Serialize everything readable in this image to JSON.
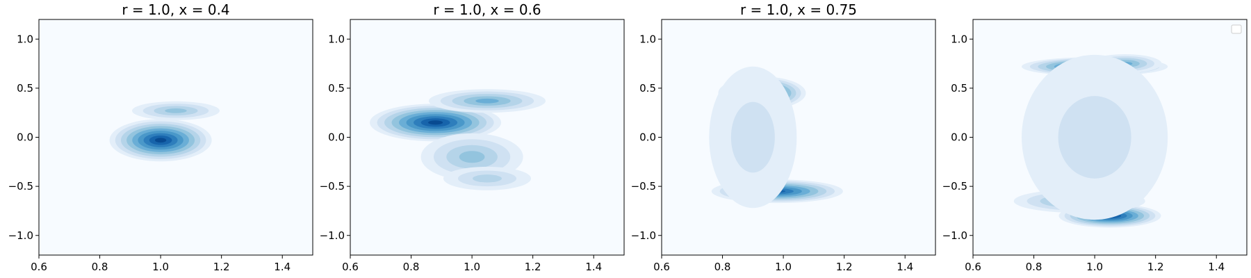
{
  "chart_data": [
    {
      "type": "contour",
      "title": "r = 1.0, x = 0.4",
      "xlim": [
        0.6,
        1.5
      ],
      "ylim": [
        -1.2,
        1.2
      ],
      "xticks": [
        "0.6",
        "0.8",
        "1.0",
        "1.2",
        "1.4"
      ],
      "yticks": [
        "1.0",
        "0.5",
        "0.0",
        "−0.5",
        "−1.0"
      ],
      "colormap": "Blues",
      "density_peaks": [
        {
          "x": 1.0,
          "y": -0.03,
          "spread_x": 0.07,
          "spread_y": 0.09,
          "weight": 1.0
        },
        {
          "x": 1.05,
          "y": 0.27,
          "spread_x": 0.06,
          "spread_y": 0.04,
          "weight": 0.4
        }
      ]
    },
    {
      "type": "contour",
      "title": "r = 1.0, x = 0.6",
      "xlim": [
        0.6,
        1.5
      ],
      "ylim": [
        -1.2,
        1.2
      ],
      "xticks": [
        "0.6",
        "0.8",
        "1.0",
        "1.2",
        "1.4"
      ],
      "yticks": [
        "1.0",
        "0.5",
        "0.0",
        "−0.5",
        "−1.0"
      ],
      "colormap": "Blues",
      "density_peaks": [
        {
          "x": 0.88,
          "y": 0.15,
          "spread_x": 0.09,
          "spread_y": 0.08,
          "weight": 1.0
        },
        {
          "x": 1.05,
          "y": 0.37,
          "spread_x": 0.08,
          "spread_y": 0.05,
          "weight": 0.5
        },
        {
          "x": 1.0,
          "y": -0.2,
          "spread_x": 0.07,
          "spread_y": 0.1,
          "weight": 0.45
        },
        {
          "x": 1.05,
          "y": -0.42,
          "spread_x": 0.06,
          "spread_y": 0.05,
          "weight": 0.35
        }
      ]
    },
    {
      "type": "contour",
      "title": "r = 1.0, x = 0.75",
      "xlim": [
        0.6,
        1.5
      ],
      "ylim": [
        -1.2,
        1.2
      ],
      "xticks": [
        "0.6",
        "0.8",
        "1.0",
        "1.2",
        "1.4"
      ],
      "yticks": [
        "1.0",
        "0.5",
        "0.0",
        "−0.5",
        "−1.0"
      ],
      "colormap": "Blues",
      "density_peaks": [
        {
          "x": 0.93,
          "y": 0.45,
          "spread_x": 0.06,
          "spread_y": 0.07,
          "weight": 1.0
        },
        {
          "x": 0.98,
          "y": -0.55,
          "spread_x": 0.09,
          "spread_y": 0.05,
          "weight": 0.9
        },
        {
          "x": 0.9,
          "y": 0.0,
          "spread_x": 0.06,
          "spread_y": 0.3,
          "weight": 0.12
        }
      ]
    },
    {
      "type": "contour",
      "title": "",
      "xlim": [
        0.6,
        1.5
      ],
      "ylim": [
        -1.2,
        1.2
      ],
      "xticks": [
        "0.6",
        "0.8",
        "1.0",
        "1.2",
        "1.4"
      ],
      "yticks": [
        "1.0",
        "0.5",
        "0.0",
        "−0.5",
        "−1.0"
      ],
      "colormap": "Blues",
      "legend": "top-right",
      "density_peaks": [
        {
          "x": 1.0,
          "y": 0.72,
          "spread_x": 0.1,
          "spread_y": 0.04,
          "weight": 1.0
        },
        {
          "x": 1.1,
          "y": 0.75,
          "spread_x": 0.05,
          "spread_y": 0.04,
          "weight": 0.6
        },
        {
          "x": 1.05,
          "y": -0.8,
          "spread_x": 0.07,
          "spread_y": 0.05,
          "weight": 1.0
        },
        {
          "x": 0.95,
          "y": -0.65,
          "spread_x": 0.09,
          "spread_y": 0.05,
          "weight": 0.5
        },
        {
          "x": 1.0,
          "y": 0.0,
          "spread_x": 0.1,
          "spread_y": 0.35,
          "weight": 0.1
        }
      ]
    }
  ]
}
